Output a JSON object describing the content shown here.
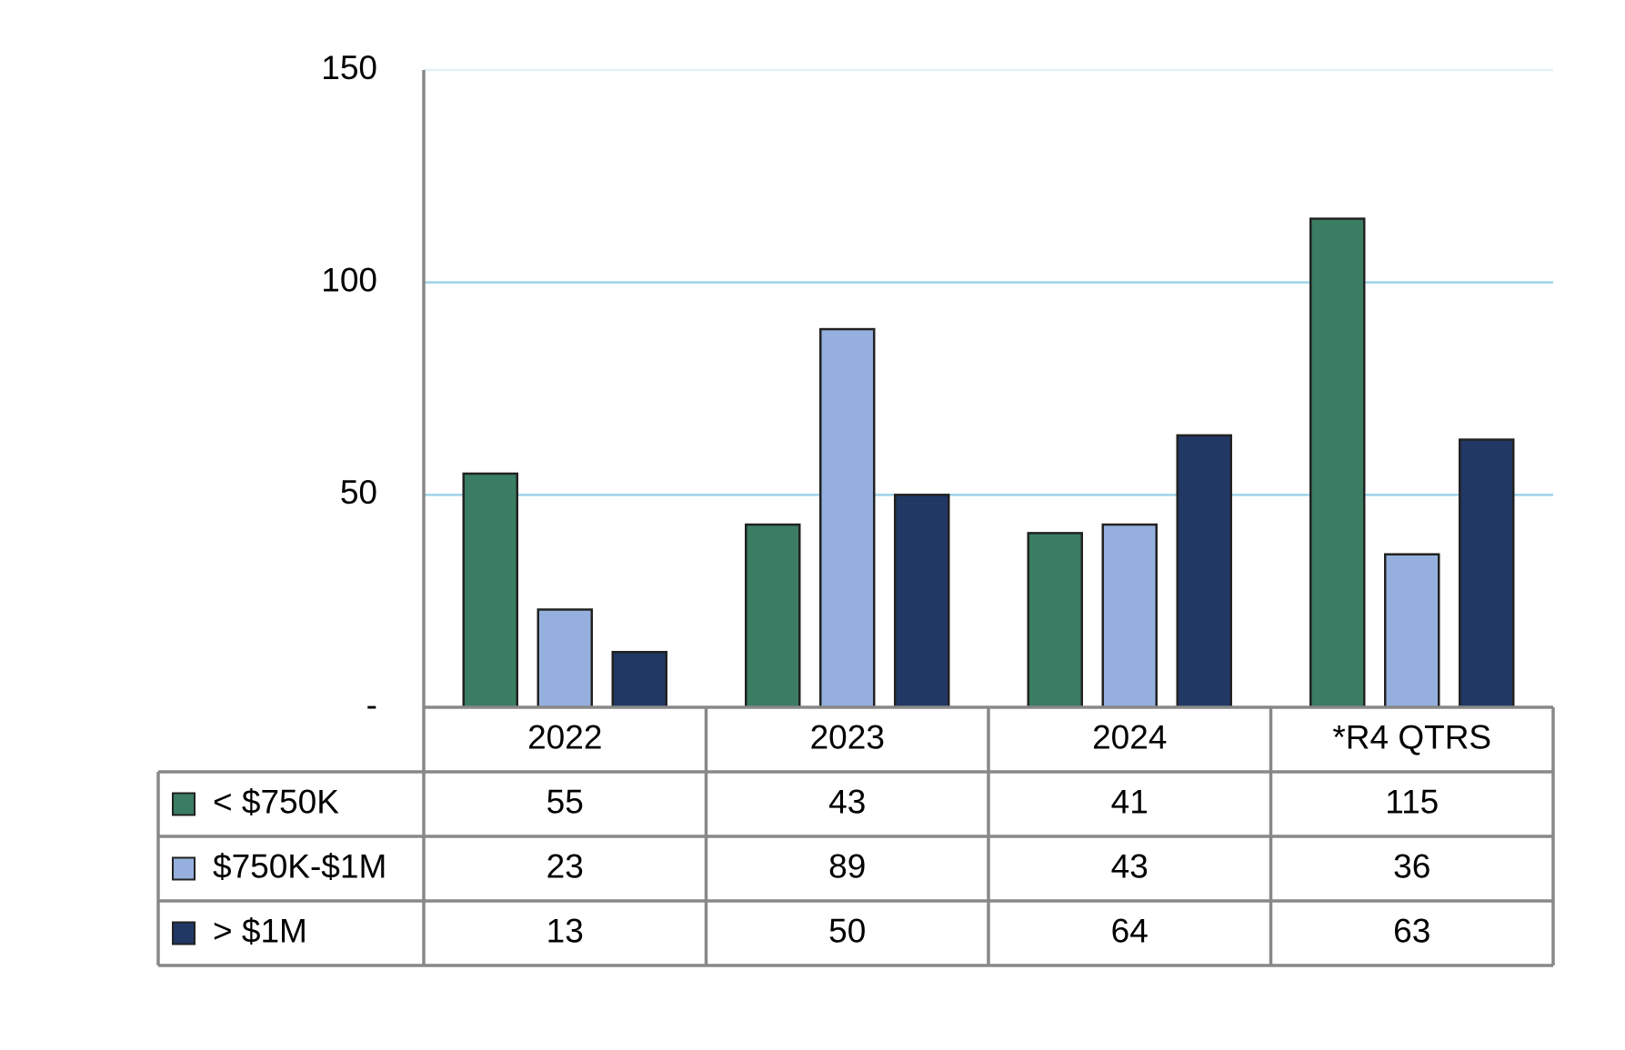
{
  "chart_data": {
    "type": "bar",
    "categories": [
      "2022",
      "2023",
      "2024",
      "*R4 QTRS"
    ],
    "series": [
      {
        "name": "< $750K",
        "color": "#3a7d62",
        "values": [
          55,
          43,
          41,
          115
        ]
      },
      {
        "name": "$750K-$1M",
        "color": "#95b0de",
        "values": [
          23,
          89,
          43,
          36
        ]
      },
      {
        "name": "> $1M",
        "color": "#213864",
        "values": [
          13,
          50,
          64,
          63
        ]
      }
    ],
    "ylim": [
      0,
      150
    ],
    "yticks": [
      {
        "value": 0,
        "label": "-"
      },
      50,
      100,
      150
    ],
    "grid": true,
    "grid_color": "#9ed3e8"
  }
}
